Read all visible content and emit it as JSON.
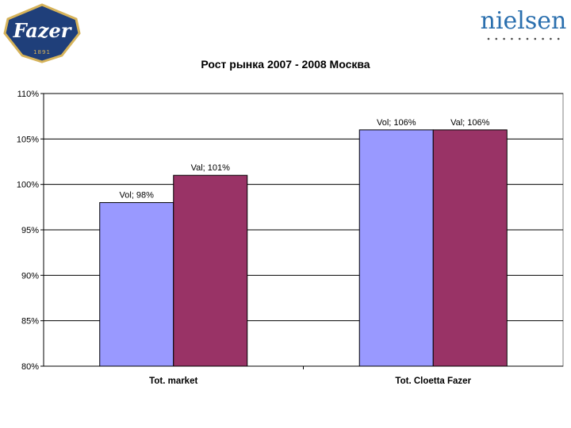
{
  "header": {
    "left_logo": {
      "text": "Fazer",
      "year_text": "1891",
      "colors": {
        "badge": "#1f3f7a",
        "rim": "#d6b35a",
        "text": "#ffffff"
      }
    },
    "right_logo": {
      "text": "nielsen",
      "colors": {
        "text": "#2a6fae",
        "dots": "#4a4a4a"
      }
    }
  },
  "chart_data": {
    "type": "bar",
    "title": "Рост рынка 2007 - 2008 Москва",
    "xlabel": "",
    "ylabel": "",
    "categories": [
      "Tot. market",
      "Tot. Cloetta Fazer"
    ],
    "series": [
      {
        "name": "Vol",
        "values": [
          98,
          106
        ],
        "data_labels": [
          "Vol; 98%",
          "Vol; 106%"
        ],
        "color": "#9999ff"
      },
      {
        "name": "Val",
        "values": [
          101,
          106
        ],
        "data_labels": [
          "Val; 101%",
          "Val; 106%"
        ],
        "color": "#993366"
      }
    ],
    "ylim": [
      80,
      110
    ],
    "yticks": [
      80,
      85,
      90,
      95,
      100,
      105,
      110
    ],
    "ytick_labels": [
      "80%",
      "85%",
      "90%",
      "95%",
      "100%",
      "105%",
      "110%"
    ],
    "grid": true,
    "legend": "none"
  }
}
